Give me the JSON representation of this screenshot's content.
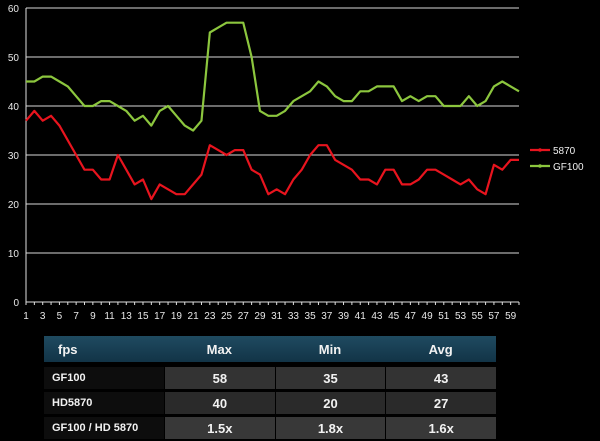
{
  "chart_data": {
    "type": "line",
    "x": [
      1,
      2,
      3,
      4,
      5,
      6,
      7,
      8,
      9,
      10,
      11,
      12,
      13,
      14,
      15,
      16,
      17,
      18,
      19,
      20,
      21,
      22,
      23,
      24,
      25,
      26,
      27,
      28,
      29,
      30,
      31,
      32,
      33,
      34,
      35,
      36,
      37,
      38,
      39,
      40,
      41,
      42,
      43,
      44,
      45,
      46,
      47,
      48,
      49,
      50,
      51,
      52,
      53,
      54,
      55,
      56,
      57,
      58,
      59,
      60
    ],
    "x_tick_labels": [
      "1",
      "3",
      "5",
      "7",
      "9",
      "11",
      "13",
      "15",
      "17",
      "19",
      "21",
      "23",
      "25",
      "27",
      "29",
      "31",
      "33",
      "35",
      "37",
      "39",
      "41",
      "43",
      "45",
      "47",
      "49",
      "51",
      "53",
      "55",
      "57",
      "59"
    ],
    "y_tick_labels": [
      "0",
      "10",
      "20",
      "30",
      "40",
      "50",
      "60"
    ],
    "ylim": [
      0,
      60
    ],
    "grid": true,
    "legend_position": "right",
    "series": [
      {
        "name": "5870",
        "color": "#e8141e",
        "values": [
          37,
          39,
          37,
          38,
          36,
          33,
          30,
          27,
          27,
          25,
          25,
          30,
          27,
          24,
          25,
          21,
          24,
          23,
          22,
          22,
          24,
          26,
          32,
          31,
          30,
          31,
          31,
          27,
          26,
          22,
          23,
          22,
          25,
          27,
          30,
          32,
          32,
          29,
          28,
          27,
          25,
          25,
          24,
          27,
          27,
          24,
          24,
          25,
          27,
          27,
          26,
          25,
          24,
          25,
          23,
          22,
          28,
          27,
          29,
          29
        ]
      },
      {
        "name": "GF100",
        "color": "#8cc63e",
        "values": [
          45,
          45,
          46,
          46,
          45,
          44,
          42,
          40,
          40,
          41,
          41,
          40,
          39,
          37,
          38,
          36,
          39,
          40,
          38,
          36,
          35,
          37,
          55,
          56,
          57,
          57,
          57,
          50,
          39,
          38,
          38,
          39,
          41,
          42,
          43,
          45,
          44,
          42,
          41,
          41,
          43,
          43,
          44,
          44,
          44,
          41,
          42,
          41,
          42,
          42,
          40,
          40,
          40,
          42,
          40,
          41,
          44,
          45,
          44,
          43
        ]
      }
    ]
  },
  "table": {
    "headers": [
      "fps",
      "Max",
      "Min",
      "Avg"
    ],
    "rows": [
      {
        "label": "GF100",
        "max": "58",
        "min": "35",
        "avg": "43"
      },
      {
        "label": "HD5870",
        "max": "40",
        "min": "20",
        "avg": "27"
      },
      {
        "label": "GF100 / HD 5870",
        "max": "1.5x",
        "min": "1.8x",
        "avg": "1.6x"
      }
    ]
  },
  "colors": {
    "background": "#000000",
    "gridline": "#d8d8d8",
    "table_header": "#1a4356",
    "table_cell": "#333333"
  }
}
